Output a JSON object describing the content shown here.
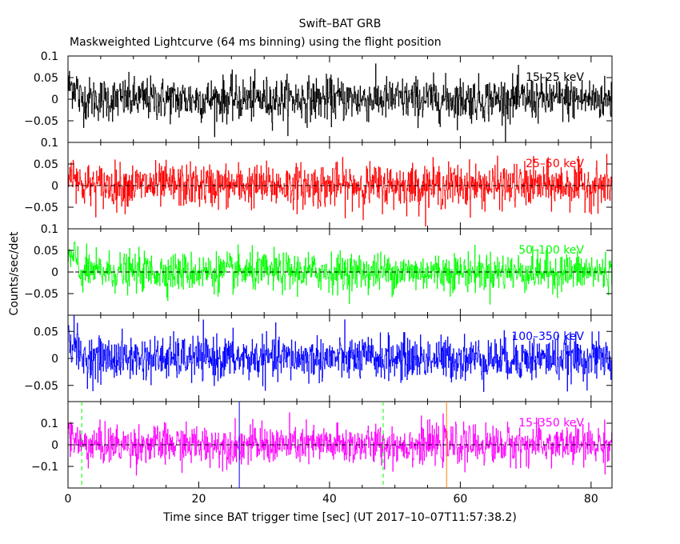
{
  "chart_data": {
    "type": "line",
    "title": "Swift–BAT GRB",
    "subtitle": "Maskweighted Lightcurve (64 ms binning) using the flight position",
    "xlabel": "Time since BAT trigger time [sec] (UT 2017–10–07T11:57:38.2)",
    "ylabel": "Counts/sec/det",
    "xlim": [
      0,
      83.2
    ],
    "xticks": [
      0,
      20,
      40,
      60,
      80
    ],
    "x_tick_labels": [
      "0",
      "20",
      "40",
      "60",
      "80"
    ],
    "bin_width_sec": 0.064,
    "panels": [
      {
        "band": "15–25 keV",
        "color": "#000000",
        "ylim": [
          -0.1,
          0.1
        ],
        "yticks": [
          0.1,
          0.05,
          0,
          -0.05
        ],
        "ytick_labels": [
          "0.1",
          "0.05",
          "0",
          "−0.05"
        ],
        "noise_sigma": 0.025,
        "zero_line": false
      },
      {
        "band": "25–50 keV",
        "color": "#ff0000",
        "ylim": [
          -0.1,
          0.1
        ],
        "yticks": [
          0.1,
          0.05,
          0,
          -0.05
        ],
        "ytick_labels": [
          "0.1",
          "0.05",
          "0",
          "−0.05"
        ],
        "noise_sigma": 0.025,
        "zero_line": true
      },
      {
        "band": "50–100 keV",
        "color": "#00ff00",
        "ylim": [
          -0.1,
          0.1
        ],
        "yticks": [
          0.1,
          0.05,
          0,
          -0.05
        ],
        "ytick_labels": [
          "0.1",
          "0.05",
          "0",
          "−0.05"
        ],
        "noise_sigma": 0.022,
        "zero_line": true
      },
      {
        "band": "100–350 keV",
        "color": "#0000ff",
        "ylim": [
          -0.08,
          0.08
        ],
        "yticks": [
          0.05,
          0,
          -0.05
        ],
        "ytick_labels": [
          "0.05",
          "0",
          "−0.05"
        ],
        "noise_sigma": 0.02,
        "zero_line": false
      },
      {
        "band": "15–350 keV",
        "color": "#ff00ff",
        "ylim": [
          -0.2,
          0.2
        ],
        "yticks": [
          0.1,
          0,
          -0.1
        ],
        "ytick_labels": [
          "0.1",
          "0",
          "−0.1"
        ],
        "noise_sigma": 0.045,
        "zero_line": true
      }
    ],
    "vertical_markers": [
      {
        "x": 2.1,
        "color": "#00ff00",
        "style": "dashed"
      },
      {
        "x": 26.2,
        "color": "#0000ff",
        "style": "solid"
      },
      {
        "x": 48.2,
        "color": "#00ff00",
        "style": "dashed"
      },
      {
        "x": 57.9,
        "color": "#ff8000",
        "style": "solid"
      }
    ]
  }
}
